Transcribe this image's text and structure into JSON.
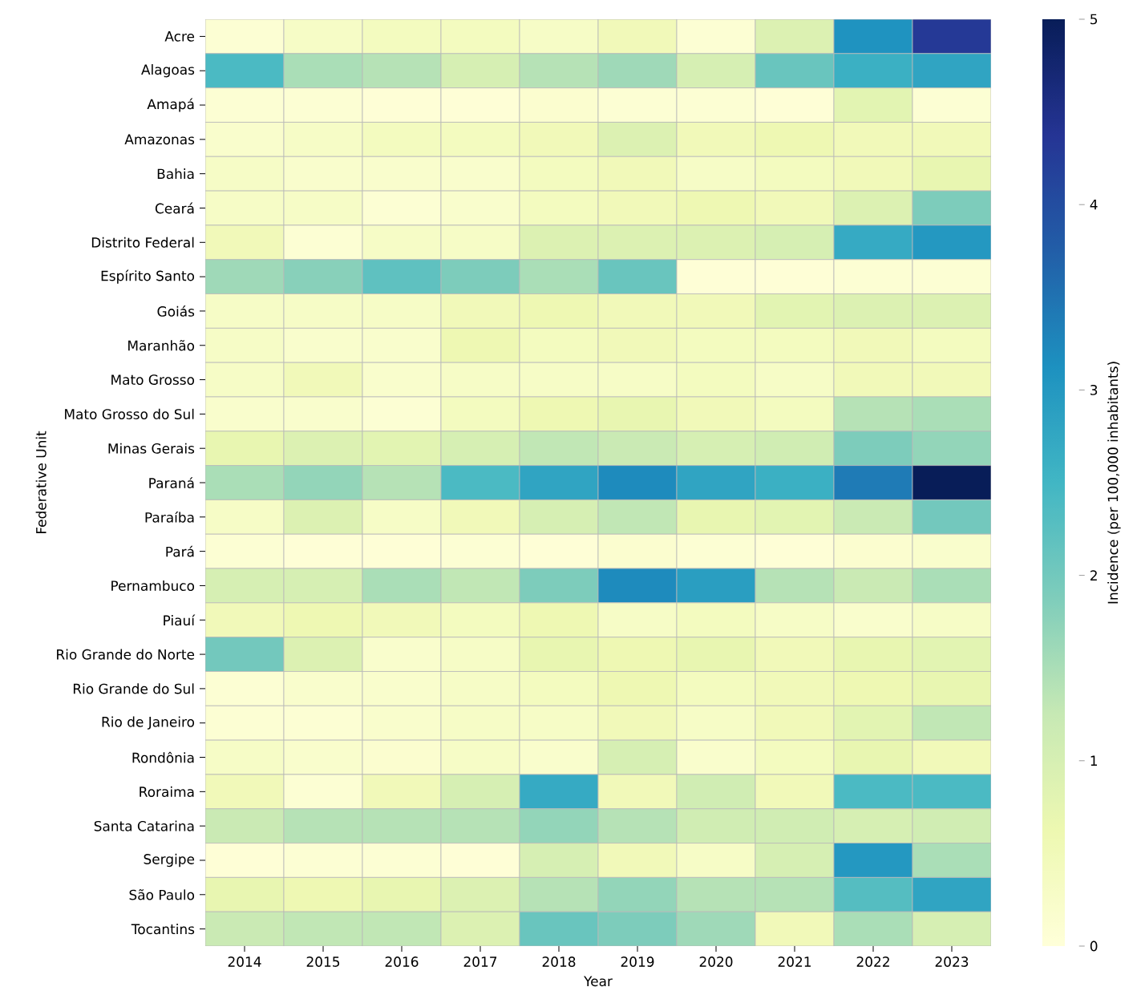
{
  "chart_data": {
    "type": "heatmap",
    "xlabel": "Year",
    "ylabel": "Federative Unit",
    "clabel": "Incidence (per 100,000 inhabitants)",
    "categories": [
      "2014",
      "2015",
      "2016",
      "2017",
      "2018",
      "2019",
      "2020",
      "2021",
      "2022",
      "2023"
    ],
    "y_categories": [
      "Acre",
      "Alagoas",
      "Amapá",
      "Amazonas",
      "Bahia",
      "Ceará",
      "Distrito Federal",
      "Espírito Santo",
      "Goiás",
      "Maranhão",
      "Mato Grosso",
      "Mato Grosso do Sul",
      "Minas Gerais",
      "Paraná",
      "Paraíba",
      "Pará",
      "Pernambuco",
      "Piauí",
      "Rio Grande do Norte",
      "Rio Grande do Sul",
      "Rio de Janeiro",
      "Rondônia",
      "Roraima",
      "Santa Catarina",
      "Sergipe",
      "São Paulo",
      "Tocantins"
    ],
    "cells": [
      [
        0.1,
        0.3,
        0.4,
        0.4,
        0.3,
        0.5,
        0.1,
        0.9,
        3.1,
        4.3
      ],
      [
        2.4,
        1.5,
        1.4,
        1.0,
        1.4,
        1.6,
        1.0,
        2.1,
        2.6,
        2.8
      ],
      [
        0.1,
        0.1,
        0.05,
        0.05,
        0.15,
        0.1,
        0.1,
        0.05,
        0.8,
        0.1
      ],
      [
        0.2,
        0.3,
        0.4,
        0.4,
        0.5,
        0.9,
        0.5,
        0.6,
        0.5,
        0.5
      ],
      [
        0.3,
        0.2,
        0.2,
        0.2,
        0.4,
        0.5,
        0.3,
        0.4,
        0.5,
        0.7
      ],
      [
        0.3,
        0.3,
        0.1,
        0.2,
        0.4,
        0.5,
        0.6,
        0.5,
        0.9,
        1.9
      ],
      [
        0.5,
        0.1,
        0.3,
        0.3,
        0.9,
        0.9,
        0.9,
        1.0,
        2.7,
        3.0
      ],
      [
        1.6,
        1.8,
        2.2,
        1.9,
        1.5,
        2.1,
        0.05,
        0.05,
        0.1,
        0.1
      ],
      [
        0.3,
        0.3,
        0.3,
        0.5,
        0.6,
        0.5,
        0.5,
        0.8,
        0.9,
        0.9
      ],
      [
        0.3,
        0.2,
        0.2,
        0.6,
        0.4,
        0.5,
        0.4,
        0.4,
        0.5,
        0.4
      ],
      [
        0.3,
        0.5,
        0.2,
        0.3,
        0.3,
        0.3,
        0.4,
        0.3,
        0.5,
        0.5
      ],
      [
        0.2,
        0.2,
        0.1,
        0.4,
        0.6,
        0.7,
        0.5,
        0.4,
        1.4,
        1.5
      ],
      [
        0.7,
        0.9,
        0.8,
        1.0,
        1.3,
        1.2,
        1.0,
        1.1,
        1.9,
        1.7
      ],
      [
        1.5,
        1.7,
        1.4,
        2.4,
        2.8,
        3.2,
        2.8,
        2.6,
        3.4,
        5.0
      ],
      [
        0.3,
        0.9,
        0.3,
        0.5,
        1.0,
        1.3,
        0.7,
        0.8,
        1.2,
        2.0
      ],
      [
        0.1,
        0.05,
        0.05,
        0.1,
        0.05,
        0.15,
        0.1,
        0.05,
        0.15,
        0.2
      ],
      [
        1.0,
        1.0,
        1.5,
        1.3,
        1.9,
        3.2,
        2.9,
        1.4,
        1.2,
        1.5
      ],
      [
        0.5,
        0.6,
        0.5,
        0.4,
        0.6,
        0.3,
        0.4,
        0.3,
        0.2,
        0.3
      ],
      [
        2.0,
        0.9,
        0.2,
        0.3,
        0.7,
        0.6,
        0.7,
        0.5,
        0.7,
        0.8
      ],
      [
        0.1,
        0.2,
        0.2,
        0.3,
        0.4,
        0.6,
        0.4,
        0.5,
        0.6,
        0.7
      ],
      [
        0.1,
        0.1,
        0.2,
        0.3,
        0.3,
        0.5,
        0.3,
        0.5,
        0.8,
        1.3
      ],
      [
        0.3,
        0.2,
        0.15,
        0.3,
        0.2,
        1.0,
        0.2,
        0.4,
        0.7,
        0.5
      ],
      [
        0.5,
        0.1,
        0.5,
        1.0,
        2.7,
        0.5,
        1.1,
        0.5,
        2.4,
        2.4
      ],
      [
        1.2,
        1.4,
        1.4,
        1.4,
        1.7,
        1.4,
        1.1,
        1.1,
        1.0,
        1.1
      ],
      [
        0.05,
        0.1,
        0.1,
        0.05,
        1.0,
        0.5,
        0.3,
        1.0,
        3.0,
        1.5
      ],
      [
        0.7,
        0.6,
        0.7,
        0.9,
        1.4,
        1.7,
        1.4,
        1.4,
        2.3,
        2.8
      ],
      [
        1.2,
        1.3,
        1.3,
        0.9,
        2.1,
        1.9,
        1.6,
        0.5,
        1.5,
        1.0
      ]
    ],
    "clim": [
      0,
      5
    ],
    "cticks": [
      0,
      1,
      2,
      3,
      4,
      5
    ]
  }
}
